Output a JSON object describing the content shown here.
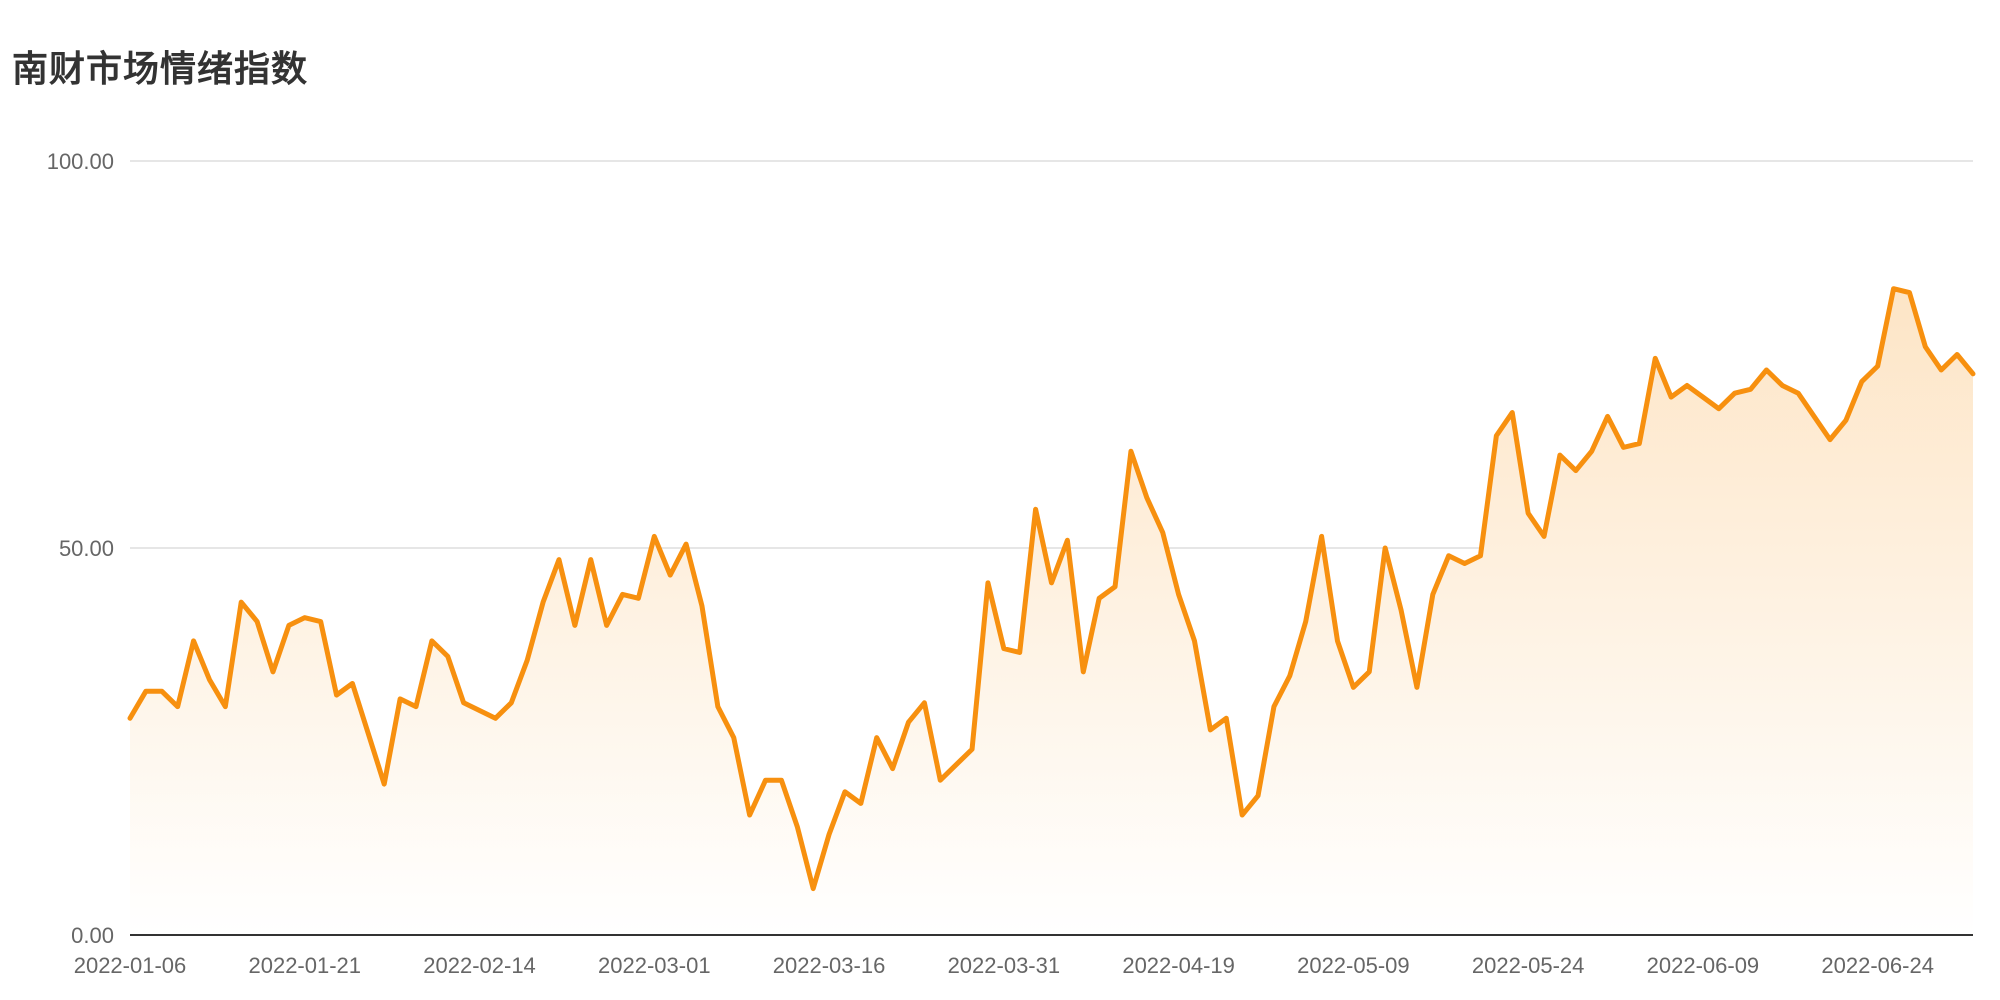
{
  "title": "南财市场情绪指数",
  "colors": {
    "line": "#F7900F",
    "area_top": "#FDE5C6",
    "area_bottom": "#FFFFFF",
    "grid": "#DDDDDD",
    "axis": "#333333",
    "tick_text": "#666666"
  },
  "chart_data": {
    "type": "area",
    "title": "南财市场情绪指数",
    "xlabel": "",
    "ylabel": "",
    "ylim": [
      0,
      100
    ],
    "yticks": [
      "0.00",
      "50.00",
      "100.00"
    ],
    "grid": true,
    "xtick_labels": [
      "2022-01-06",
      "2022-01-21",
      "2022-02-14",
      "2022-03-01",
      "2022-03-16",
      "2022-03-31",
      "2022-04-19",
      "2022-05-09",
      "2022-05-24",
      "2022-06-09",
      "2022-06-24"
    ],
    "xtick_indices": [
      0,
      11,
      22,
      33,
      44,
      55,
      66,
      77,
      88,
      99,
      110
    ],
    "series": [
      {
        "values": [
          28,
          31.5,
          31.5,
          29.5,
          38,
          33,
          29.5,
          43,
          40.5,
          34,
          40,
          41,
          40.5,
          31,
          32.5,
          26,
          19.5,
          30.5,
          29.5,
          38,
          36,
          30,
          29,
          28,
          30,
          35.5,
          43,
          48.5,
          40,
          48.5,
          40,
          44,
          43.5,
          51.5,
          46.5,
          50.5,
          42.5,
          29.5,
          25.5,
          15.5,
          20,
          20,
          14,
          6,
          13,
          18.5,
          17,
          25.5,
          21.5,
          27.5,
          30,
          20,
          22,
          24,
          45.5,
          37,
          36.5,
          55,
          45.5,
          51,
          34,
          43.5,
          45,
          62.5,
          56.5,
          52,
          44,
          38,
          26.5,
          28,
          15.5,
          18,
          29.5,
          33.5,
          40.5,
          51.5,
          38,
          32,
          34,
          50,
          42,
          32,
          44,
          49,
          48,
          49,
          64.5,
          67.5,
          54.5,
          51.5,
          62,
          60,
          62.5,
          67,
          63,
          63.5,
          74.5,
          69.5,
          71,
          69.5,
          68,
          70,
          70.5,
          73,
          71,
          70,
          67,
          64,
          66.5,
          71.5,
          73.5,
          83.5,
          83,
          76,
          73,
          75,
          72.5
        ]
      }
    ]
  }
}
